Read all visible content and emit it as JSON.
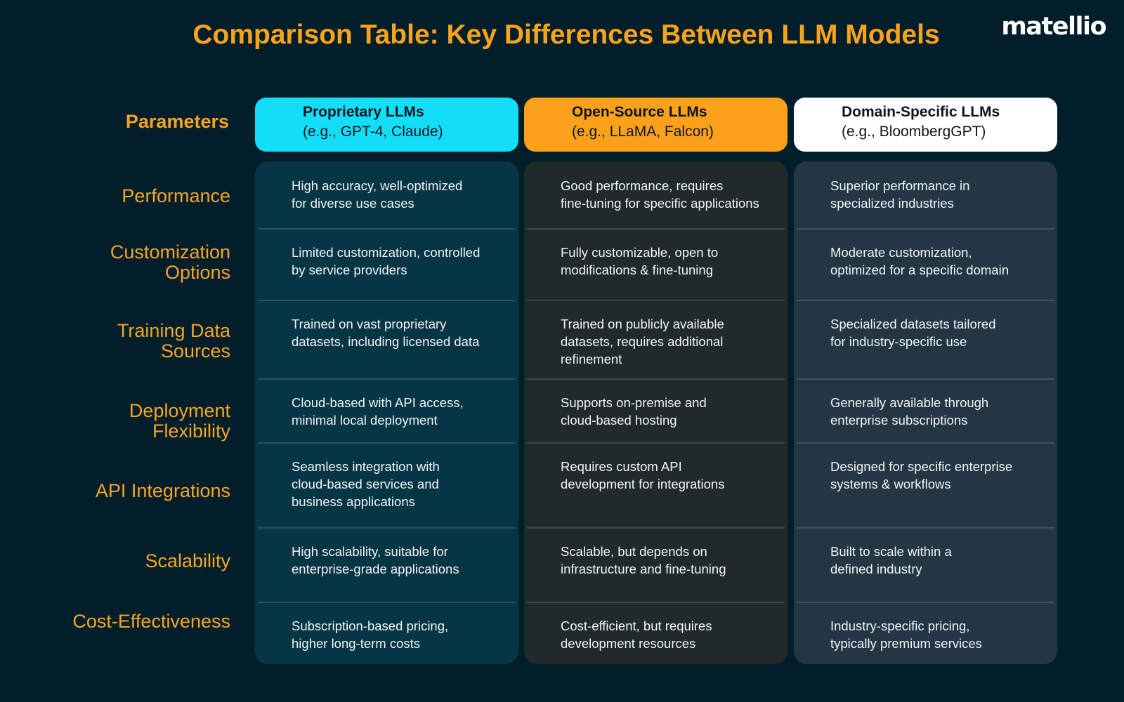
{
  "title": "Comparison Table: Key Differences Between LLM Models",
  "logo": "matellio",
  "table": {
    "corner": "Parameters",
    "columns": [
      {
        "name": "Proprietary LLMs",
        "subtitle": "(e.g., GPT-4, Claude)"
      },
      {
        "name": "Open-Source LLMs",
        "subtitle": "(e.g., LLaMA, Falcon)"
      },
      {
        "name": "Domain-Specific LLMs",
        "subtitle": "(e.g., BloombergGPT)"
      }
    ],
    "rows": [
      {
        "label": "Performance",
        "cells": [
          "High accuracy, well-optimized\nfor diverse use cases",
          "Good performance, requires\nfine-tuning for specific applications",
          "Superior performance in\nspecialized industries"
        ]
      },
      {
        "label": "Customization\nOptions",
        "cells": [
          "Limited customization, controlled\nby service providers",
          "Fully customizable, open to\nmodifications & fine-tuning",
          "Moderate customization,\noptimized for a specific domain"
        ]
      },
      {
        "label": "Training Data\nSources",
        "cells": [
          "Trained on vast proprietary\ndatasets, including licensed data",
          "Trained on publicly available\ndatasets, requires additional\nrefinement",
          "Specialized datasets tailored\nfor industry-specific use"
        ]
      },
      {
        "label": "Deployment\nFlexibility",
        "cells": [
          "Cloud-based with API access,\nminimal local deployment",
          "Supports on-premise and\ncloud-based hosting",
          "Generally available through\nenterprise subscriptions"
        ]
      },
      {
        "label": "API Integrations",
        "cells": [
          "Seamless integration with\ncloud-based services and\nbusiness applications",
          "Requires custom API\ndevelopment for integrations",
          "Designed for specific enterprise\nsystems & workflows"
        ]
      },
      {
        "label": "Scalability",
        "cells": [
          "High scalability, suitable for\nenterprise-grade applications",
          "Scalable, but depends on\ninfrastructure and fine-tuning",
          "Built to scale within a\ndefined industry"
        ]
      },
      {
        "label": "Cost-Effectiveness",
        "cells": [
          "Subscription-based pricing,\nhigher long-term costs",
          "Cost-efficient, but requires\ndevelopment resources",
          "Industry-specific pricing,\ntypically premium services"
        ]
      }
    ]
  }
}
